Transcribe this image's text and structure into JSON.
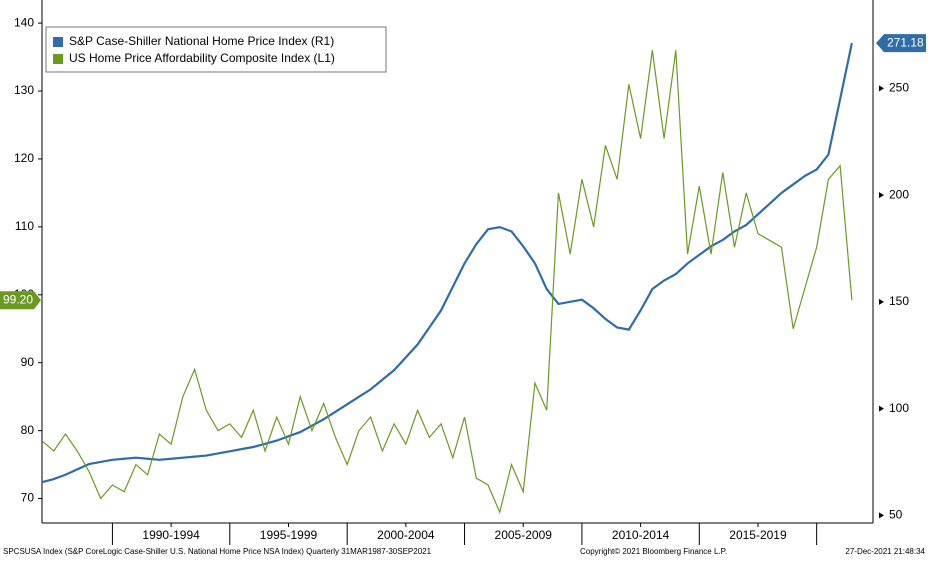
{
  "chart_data": {
    "type": "line",
    "legend": "top-left",
    "x": [
      1987,
      1987.5,
      1988,
      1988.5,
      1989,
      1989.5,
      1990,
      1990.5,
      1991,
      1991.5,
      1992,
      1992.5,
      1993,
      1993.5,
      1994,
      1994.5,
      1995,
      1995.5,
      1996,
      1996.5,
      1997,
      1997.5,
      1998,
      1998.5,
      1999,
      1999.5,
      2000,
      2000.5,
      2001,
      2001.5,
      2002,
      2002.5,
      2003,
      2003.5,
      2004,
      2004.5,
      2005,
      2005.5,
      2006,
      2006.5,
      2007,
      2007.5,
      2008,
      2008.5,
      2009,
      2009.5,
      2010,
      2010.5,
      2011,
      2011.5,
      2012,
      2012.5,
      2013,
      2013.5,
      2014,
      2014.5,
      2015,
      2015.5,
      2016,
      2016.5,
      2017,
      2017.5,
      2018,
      2018.5,
      2019,
      2019.5,
      2020,
      2020.5,
      2021,
      2021.5
    ],
    "xlim": [
      1987,
      2022.4
    ],
    "xticks": [
      {
        "value": 1992.5,
        "label": "1990-1994"
      },
      {
        "value": 1997.5,
        "label": "1995-1999"
      },
      {
        "value": 2002.5,
        "label": "2000-2004"
      },
      {
        "value": 2007.5,
        "label": "2005-2009"
      },
      {
        "value": 2012.5,
        "label": "2010-2014"
      },
      {
        "value": 2017.5,
        "label": "2015-2019"
      }
    ],
    "ylim": [
      66.4,
      143.4
    ],
    "yticks": [
      70,
      80,
      90,
      100,
      110,
      120,
      130,
      140
    ],
    "y2lim": [
      46.4,
      291.4
    ],
    "y2ticks": [
      50,
      100,
      150,
      200,
      250
    ],
    "series": [
      {
        "name": "S&P Case-Shiller National Home Price Index (R1)",
        "color": "#2f6ca8",
        "axis": "y2",
        "values": [
          65.5,
          67,
          69,
          71.5,
          74,
          75,
          76,
          76.5,
          77,
          76.5,
          76,
          76.5,
          77,
          77.5,
          78,
          79,
          80,
          81,
          82,
          83.5,
          85,
          87,
          89,
          92,
          95,
          98.5,
          102,
          105.5,
          109,
          113.5,
          118,
          124,
          130,
          138,
          146,
          157,
          168,
          177,
          184,
          185,
          183,
          176,
          168,
          156,
          149,
          150,
          151,
          147,
          142,
          138,
          137,
          146,
          156,
          160,
          163,
          168,
          172,
          176,
          179,
          183,
          186,
          191,
          196,
          201,
          205,
          209,
          212,
          219,
          245,
          271.18
        ]
      },
      {
        "name": "US Home Price Affordability Composite Index (L1)",
        "color": "#6b9a22",
        "axis": "y",
        "values": [
          78.5,
          77,
          79.5,
          77,
          74,
          70,
          72,
          71,
          75,
          73.5,
          79.5,
          78,
          85,
          89,
          83,
          80,
          81,
          79,
          83,
          77,
          82,
          78,
          85,
          80,
          84,
          79,
          75,
          80,
          82,
          77,
          81,
          78,
          83,
          79,
          81,
          76,
          82,
          73,
          72,
          68,
          75,
          71,
          87,
          83,
          115,
          106,
          117,
          110,
          122,
          117,
          131,
          123,
          136,
          123,
          136,
          106,
          116,
          106,
          118,
          107,
          115,
          109,
          108,
          107,
          95,
          101,
          107,
          117,
          119,
          99.2
        ],
        "value_labels": [
          null,
          null,
          null,
          null,
          null,
          null,
          null,
          null,
          null,
          null,
          null,
          null,
          null,
          null,
          null,
          null,
          null,
          null,
          null,
          null,
          null,
          null,
          null,
          null,
          null,
          null,
          null,
          null,
          null,
          null,
          null,
          null,
          null,
          null,
          null,
          null,
          null,
          null,
          null,
          null,
          null,
          null,
          null,
          null,
          null,
          null,
          null,
          null,
          null,
          null,
          null,
          null,
          null,
          null,
          null,
          null,
          null,
          null,
          null,
          null,
          null,
          null,
          null,
          null,
          null,
          null,
          null,
          null,
          null,
          "99.20"
        ]
      }
    ],
    "footer": {
      "source": "SPCSUSA Index (S&P CoreLogic Case-Shiller U.S. National Home Price NSA Index)  Quarterly 31MAR1987-30SEP2021",
      "copyright": "Copyright© 2021 Bloomberg Finance L.P.",
      "timestamp": "27-Dec-2021 21:48:34"
    }
  }
}
